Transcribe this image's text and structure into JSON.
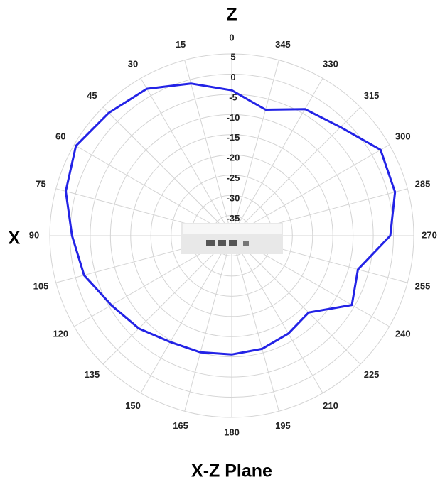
{
  "chart_data": {
    "type": "polar",
    "title": "X-Z Plane",
    "top_label": "Z",
    "left_label": "X",
    "theta": [
      0,
      15,
      30,
      45,
      60,
      75,
      90,
      105,
      120,
      135,
      150,
      165,
      180,
      195,
      210,
      225,
      240,
      255,
      270,
      285,
      300,
      315,
      330,
      345
    ],
    "direction": "counterclockwise",
    "rlim": [
      -40,
      5
    ],
    "rticks": [
      -35,
      -30,
      -25,
      -20,
      -15,
      -10,
      -5,
      0,
      5
    ],
    "grid": true,
    "series": [
      {
        "color": "#2323e6",
        "values": [
          -4,
          -1,
          2,
          3,
          4.5,
          2.5,
          -0.5,
          -2.2,
          -5.6,
          -7.5,
          -9.6,
          -10.1,
          -10.6,
          -11,
          -12,
          -13.1,
          -5.7,
          -7.7,
          -0.8,
          1.8,
          2.5,
          -2,
          -3.8,
          -7.7
        ]
      }
    ]
  }
}
